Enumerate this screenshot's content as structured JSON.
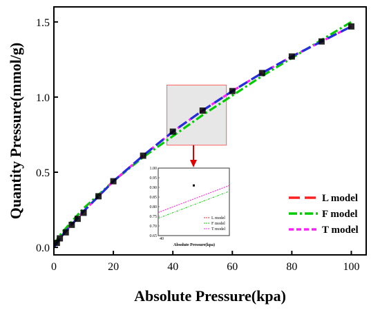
{
  "chart_data": {
    "type": "line",
    "xlabel": "Absolute Pressure(kpa)",
    "ylabel": "Quantity Pressure(mmol/g)",
    "xlim": [
      0,
      105
    ],
    "ylim": [
      -0.05,
      1.6
    ],
    "xticks": [
      0,
      20,
      40,
      60,
      80,
      100
    ],
    "yticks": [
      0.0,
      0.5,
      1.0,
      1.5
    ],
    "grid": false,
    "legend": "bottom-right",
    "experimental": {
      "x": [
        1,
        2,
        4,
        6,
        8,
        10,
        15,
        20,
        30,
        40,
        50,
        60,
        70,
        80,
        90,
        100
      ],
      "y": [
        0.03,
        0.06,
        0.1,
        0.15,
        0.19,
        0.23,
        0.34,
        0.44,
        0.61,
        0.77,
        0.91,
        1.04,
        1.16,
        1.27,
        1.37,
        1.47
      ]
    },
    "series": [
      {
        "name": "L model",
        "color": "#ff2020",
        "dash": "long-dash",
        "x": [
          0,
          2,
          5,
          10,
          15,
          20,
          30,
          40,
          50,
          60,
          70,
          80,
          90,
          100
        ],
        "y": [
          0.0,
          0.06,
          0.13,
          0.24,
          0.34,
          0.44,
          0.61,
          0.77,
          0.91,
          1.04,
          1.16,
          1.27,
          1.37,
          1.47
        ]
      },
      {
        "name": "F model",
        "color": "#00cc00",
        "dash": "dash-dot",
        "x": [
          0,
          2,
          5,
          10,
          15,
          20,
          30,
          40,
          50,
          60,
          70,
          80,
          90,
          100
        ],
        "y": [
          0.02,
          0.08,
          0.15,
          0.26,
          0.35,
          0.44,
          0.6,
          0.74,
          0.88,
          1.01,
          1.14,
          1.26,
          1.38,
          1.5
        ]
      },
      {
        "name": "T model",
        "color": "#ff20ff",
        "dash": "short-dash",
        "x": [
          0,
          2,
          5,
          10,
          15,
          20,
          30,
          40,
          50,
          60,
          70,
          80,
          90,
          100
        ],
        "y": [
          0.0,
          0.06,
          0.13,
          0.24,
          0.34,
          0.44,
          0.61,
          0.77,
          0.91,
          1.04,
          1.16,
          1.27,
          1.37,
          1.47
        ]
      },
      {
        "color": "#2030e0",
        "dash": "long-dash",
        "x": [
          0,
          2,
          5,
          10,
          15,
          20,
          30,
          40,
          50,
          60,
          70,
          80,
          90,
          100
        ],
        "y": [
          0.0,
          0.06,
          0.13,
          0.24,
          0.34,
          0.44,
          0.61,
          0.77,
          0.91,
          1.04,
          1.16,
          1.27,
          1.37,
          1.47
        ]
      }
    ],
    "zoom_box": {
      "xlim": [
        38,
        58
      ],
      "ylim": [
        0.68,
        1.08
      ],
      "fill": "#d3d3d3",
      "edge": "#ff6060"
    },
    "inset": {
      "xlim": [
        40,
        50
      ],
      "ylim": [
        0.65,
        1.0
      ],
      "yticks": [
        "0.65",
        "0.70",
        "0.75",
        "0.80",
        "0.85",
        "0.90",
        "0.95",
        "1.00"
      ],
      "xtick": "40",
      "xlabel": "Absolute Pressure(kpa)",
      "legend": [
        "L model",
        "F model",
        "T model"
      ]
    }
  }
}
